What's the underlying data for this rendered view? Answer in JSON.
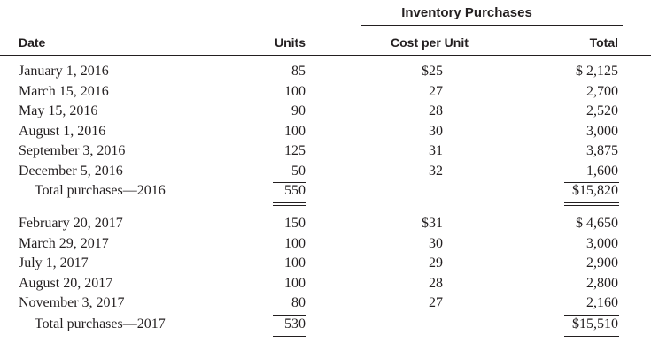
{
  "header": {
    "group_title": "Inventory Purchases",
    "date": "Date",
    "units": "Units",
    "cost_per_unit": "Cost per Unit",
    "total": "Total"
  },
  "sections": [
    {
      "rows": [
        {
          "date": "January 1, 2016",
          "units": "85",
          "cost": "$25",
          "total": "$ 2,125"
        },
        {
          "date": "March 15, 2016",
          "units": "100",
          "cost": "27",
          "total": "2,700"
        },
        {
          "date": "May 15, 2016",
          "units": "90",
          "cost": "28",
          "total": "2,520"
        },
        {
          "date": "August 1, 2016",
          "units": "100",
          "cost": "30",
          "total": "3,000"
        },
        {
          "date": "September 3, 2016",
          "units": "125",
          "cost": "31",
          "total": "3,875"
        },
        {
          "date": "December 5, 2016",
          "units": "50",
          "cost": "32",
          "total": "1,600"
        }
      ],
      "total_row": {
        "label": "Total purchases—2016",
        "units": "550",
        "total": "$15,820"
      }
    },
    {
      "rows": [
        {
          "date": "February 20, 2017",
          "units": "150",
          "cost": "$31",
          "total": "$ 4,650"
        },
        {
          "date": "March 29, 2017",
          "units": "100",
          "cost": "30",
          "total": "3,000"
        },
        {
          "date": "July 1, 2017",
          "units": "100",
          "cost": "29",
          "total": "2,900"
        },
        {
          "date": "August 20, 2017",
          "units": "100",
          "cost": "28",
          "total": "2,800"
        },
        {
          "date": "November 3, 2017",
          "units": "80",
          "cost": "27",
          "total": "2,160"
        }
      ],
      "total_row": {
        "label": "Total purchases—2017",
        "units": "530",
        "total": "$15,510"
      }
    }
  ]
}
